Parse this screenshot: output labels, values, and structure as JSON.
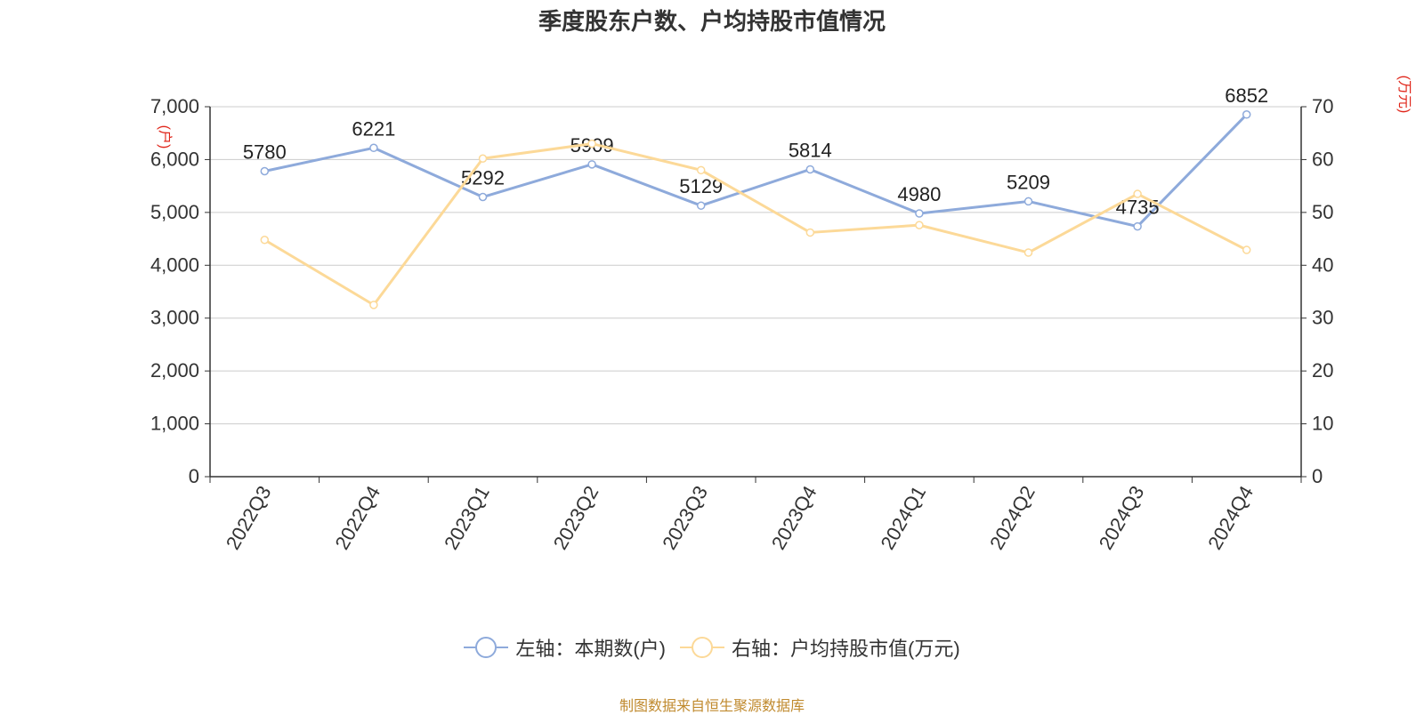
{
  "title": "季度股东户数、户均持股市值情况",
  "source": "制图数据来自恒生聚源数据库",
  "chart_data": {
    "type": "line",
    "categories": [
      "2022Q3",
      "2022Q4",
      "2023Q1",
      "2023Q2",
      "2023Q3",
      "2023Q4",
      "2024Q1",
      "2024Q2",
      "2024Q3",
      "2024Q4"
    ],
    "y_left": {
      "label": "(户)",
      "ylim": [
        0,
        7000
      ],
      "ticks": [
        0,
        1000,
        2000,
        3000,
        4000,
        5000,
        6000,
        7000
      ],
      "tick_labels": [
        "0",
        "1,000",
        "2,000",
        "3,000",
        "4,000",
        "5,000",
        "6,000",
        "7,000"
      ]
    },
    "y_right": {
      "label": "(万元)",
      "ylim": [
        0,
        70
      ],
      "ticks": [
        0,
        10,
        20,
        30,
        40,
        50,
        60,
        70
      ],
      "tick_labels": [
        "0",
        "10",
        "20",
        "30",
        "40",
        "50",
        "60",
        "70"
      ]
    },
    "grid": true,
    "legend_position": "bottom",
    "series": [
      {
        "name": "左轴：本期数(户)",
        "axis": "left",
        "color": "#8eaadb",
        "values": [
          5780,
          6221,
          5292,
          5909,
          5129,
          5814,
          4980,
          5209,
          4735,
          6852
        ],
        "data_labels": [
          "5780",
          "6221",
          "5292",
          "5909",
          "5129",
          "5814",
          "4980",
          "5209",
          "4735",
          "6852"
        ]
      },
      {
        "name": "右轴：户均持股市值(万元)",
        "axis": "right",
        "color": "#fcd998",
        "values": [
          44.8,
          32.5,
          60.2,
          63.0,
          58.0,
          46.2,
          47.6,
          42.4,
          53.5,
          42.9
        ]
      }
    ]
  }
}
